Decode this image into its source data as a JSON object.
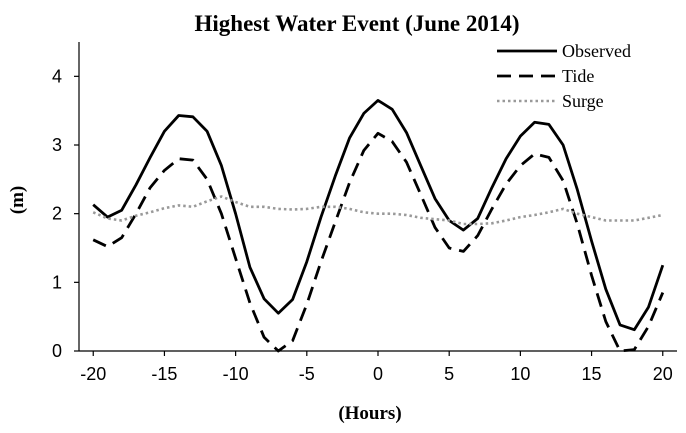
{
  "chart_data": {
    "type": "line",
    "title": "Highest Water Event (June 2014)",
    "xlabel": "(Hours)",
    "ylabel": "(m)",
    "xlim": [
      -21,
      21
    ],
    "ylim": [
      0,
      4.5
    ],
    "xticks": [
      -20,
      -15,
      -10,
      -5,
      0,
      5,
      10,
      15,
      20
    ],
    "yticks": [
      0,
      1,
      2,
      3,
      4
    ],
    "grid": false,
    "legend_position": "top-right",
    "x": [
      -20,
      -19,
      -18,
      -17,
      -16,
      -15,
      -14,
      -13,
      -12,
      -11,
      -10,
      -9,
      -8,
      -7,
      -6,
      -5,
      -4,
      -3,
      -2,
      -1,
      0,
      1,
      2,
      3,
      4,
      5,
      6,
      7,
      8,
      9,
      10,
      11,
      12,
      13,
      14,
      15,
      16,
      17,
      18,
      19,
      20
    ],
    "series": [
      {
        "name": "Observed",
        "style": "solid",
        "color": "#000000",
        "values": [
          2.13,
          1.95,
          2.05,
          2.42,
          2.82,
          3.2,
          3.43,
          3.41,
          3.2,
          2.7,
          2.0,
          1.22,
          0.76,
          0.55,
          0.75,
          1.3,
          1.95,
          2.55,
          3.1,
          3.46,
          3.65,
          3.52,
          3.18,
          2.7,
          2.22,
          1.9,
          1.76,
          1.93,
          2.38,
          2.8,
          3.13,
          3.33,
          3.3,
          3.0,
          2.35,
          1.6,
          0.9,
          0.38,
          0.31,
          0.64,
          1.25
        ]
      },
      {
        "name": "Tide",
        "style": "dashed",
        "color": "#000000",
        "values": [
          1.62,
          1.52,
          1.65,
          2.0,
          2.38,
          2.63,
          2.8,
          2.78,
          2.5,
          2.0,
          1.35,
          0.7,
          0.2,
          -0.02,
          0.15,
          0.68,
          1.3,
          1.88,
          2.45,
          2.92,
          3.17,
          3.05,
          2.75,
          2.28,
          1.8,
          1.5,
          1.45,
          1.68,
          2.07,
          2.43,
          2.7,
          2.87,
          2.82,
          2.48,
          1.85,
          1.1,
          0.43,
          -0.02,
          0.02,
          0.36,
          0.85
        ]
      },
      {
        "name": "Surge",
        "style": "dotted",
        "color": "#999999",
        "values": [
          2.02,
          1.93,
          1.9,
          1.97,
          2.02,
          2.08,
          2.12,
          2.1,
          2.18,
          2.25,
          2.17,
          2.1,
          2.1,
          2.07,
          2.06,
          2.07,
          2.1,
          2.1,
          2.07,
          2.02,
          2.0,
          2.0,
          1.98,
          1.94,
          1.92,
          1.9,
          1.85,
          1.85,
          1.86,
          1.9,
          1.95,
          1.98,
          2.02,
          2.07,
          2.0,
          1.95,
          1.9,
          1.9,
          1.9,
          1.94,
          1.98
        ]
      }
    ]
  }
}
